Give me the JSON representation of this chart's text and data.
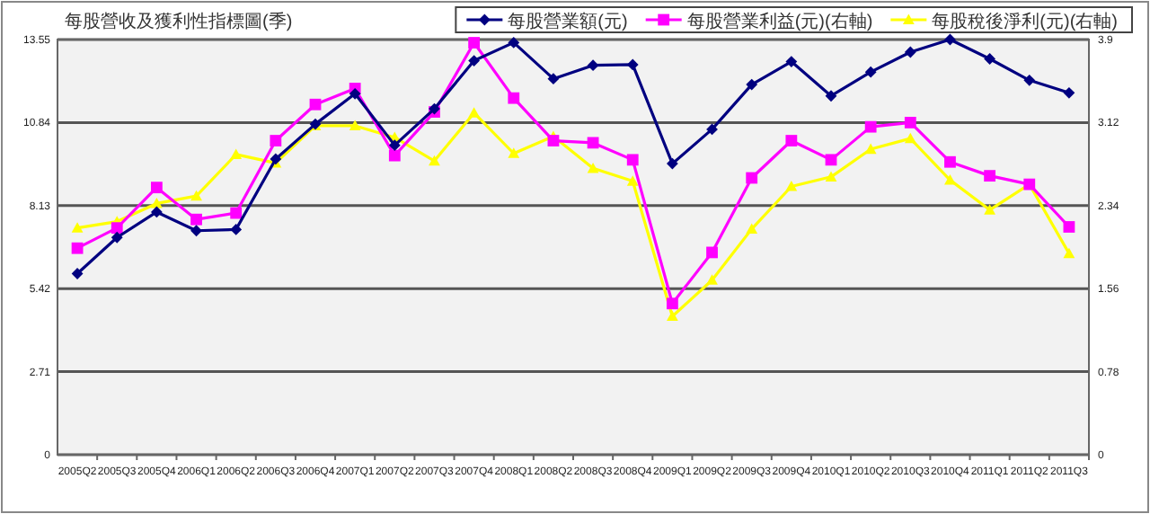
{
  "chart_data": {
    "type": "line",
    "title": "每股營收及獲利性指標圖(季)",
    "categories": [
      "2005Q2",
      "2005Q3",
      "2005Q4",
      "2006Q1",
      "2006Q2",
      "2006Q3",
      "2006Q4",
      "2007Q1",
      "2007Q2",
      "2007Q3",
      "2007Q4",
      "2008Q1",
      "2008Q2",
      "2008Q3",
      "2008Q4",
      "2009Q1",
      "2009Q2",
      "2009Q3",
      "2009Q4",
      "2010Q1",
      "2010Q2",
      "2010Q3",
      "2010Q4",
      "2011Q1",
      "2011Q2",
      "2011Q3"
    ],
    "series": [
      {
        "name": "每股營業額(元)",
        "color": "#000080",
        "marker": "diamond",
        "values": [
          5.91,
          7.09,
          7.92,
          7.31,
          7.35,
          9.65,
          10.79,
          11.78,
          10.1,
          11.29,
          12.86,
          13.45,
          12.27,
          12.71,
          12.73,
          9.5,
          10.62,
          12.08,
          12.83,
          11.71,
          12.49,
          13.14,
          13.55,
          12.92,
          12.22,
          11.81
        ]
      },
      {
        "name": "每股營業利益(元)(右軸)",
        "color": "#ff00ff",
        "marker": "square",
        "axis": "y2",
        "values": [
          1.94,
          2.13,
          2.51,
          2.21,
          2.27,
          2.95,
          3.29,
          3.44,
          2.81,
          3.22,
          3.87,
          3.35,
          2.95,
          2.93,
          2.77,
          1.42,
          1.9,
          2.6,
          2.95,
          2.77,
          3.08,
          3.12,
          2.75,
          2.62,
          2.54,
          2.14
        ]
      },
      {
        "name": "每股稅後淨利(元)(右軸)",
        "color": "#ffff00",
        "marker": "triangle",
        "axis": "y2",
        "values": [
          2.13,
          2.19,
          2.36,
          2.43,
          2.82,
          2.74,
          3.09,
          3.09,
          2.98,
          2.76,
          3.21,
          2.83,
          2.99,
          2.69,
          2.57,
          1.3,
          1.64,
          2.12,
          2.52,
          2.61,
          2.87,
          2.97,
          2.58,
          2.3,
          2.54,
          1.89
        ]
      }
    ],
    "ylim": [
      0,
      13.55
    ],
    "yticks": [
      0,
      2.71,
      5.42,
      8.13,
      10.84,
      13.55
    ],
    "y2lim": [
      0,
      3.9
    ],
    "y2ticks": [
      0,
      0.78,
      1.56,
      2.34,
      3.12,
      3.9
    ],
    "grid": "y",
    "legend": "top right"
  }
}
